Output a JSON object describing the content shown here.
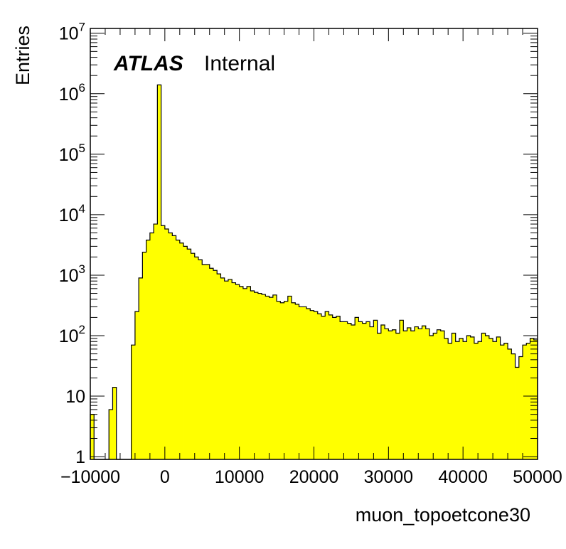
{
  "chart_data": {
    "type": "histogram",
    "title": "",
    "xlabel": "muon_topoetcone30",
    "ylabel": "Entries",
    "xlim": [
      -10000,
      50000
    ],
    "ylim": [
      0.9,
      12000000
    ],
    "log_y": true,
    "grid": false,
    "legend": "none",
    "fill_color": "#ffff00",
    "line_color": "#000000",
    "annotation": {
      "experiment": "ATLAS",
      "status": "Internal"
    },
    "x_ticks": [
      {
        "value": -10000,
        "label": "−10000"
      },
      {
        "value": 0,
        "label": "0"
      },
      {
        "value": 10000,
        "label": "10000"
      },
      {
        "value": 20000,
        "label": "20000"
      },
      {
        "value": 30000,
        "label": "30000"
      },
      {
        "value": 40000,
        "label": "40000"
      },
      {
        "value": 50000,
        "label": "50000"
      }
    ],
    "y_ticks": [
      {
        "value": 1,
        "base": "1",
        "exp": ""
      },
      {
        "value": 10,
        "base": "10",
        "exp": ""
      },
      {
        "value": 100,
        "base": "10",
        "exp": "2"
      },
      {
        "value": 1000,
        "base": "10",
        "exp": "3"
      },
      {
        "value": 10000,
        "base": "10",
        "exp": "4"
      },
      {
        "value": 100000,
        "base": "10",
        "exp": "5"
      },
      {
        "value": 1000000,
        "base": "10",
        "exp": "6"
      },
      {
        "value": 10000000,
        "base": "10",
        "exp": "7"
      }
    ],
    "bin_edges": {
      "start": -10000,
      "width": 500,
      "count": 120
    },
    "values": [
      5,
      0,
      0,
      0,
      0,
      6,
      14,
      0,
      0,
      0,
      0,
      70,
      250,
      900,
      2400,
      3800,
      5000,
      7000,
      1400000,
      6600,
      5800,
      5000,
      4500,
      3800,
      3400,
      3000,
      2700,
      2300,
      2000,
      1800,
      1500,
      1500,
      1300,
      1200,
      1050,
      900,
      800,
      850,
      750,
      700,
      650,
      600,
      650,
      550,
      520,
      500,
      480,
      450,
      430,
      470,
      370,
      350,
      370,
      450,
      350,
      330,
      300,
      300,
      280,
      260,
      250,
      230,
      210,
      250,
      220,
      200,
      210,
      170,
      170,
      160,
      150,
      200,
      170,
      160,
      170,
      140,
      180,
      110,
      150,
      130,
      120,
      125,
      110,
      180,
      120,
      135,
      120,
      140,
      130,
      145,
      130,
      100,
      110,
      125,
      120,
      90,
      75,
      110,
      80,
      90,
      80,
      100,
      95,
      75,
      80,
      110,
      100,
      90,
      80,
      95,
      70,
      75,
      60,
      50,
      30,
      45,
      70,
      75,
      90,
      85
    ]
  }
}
